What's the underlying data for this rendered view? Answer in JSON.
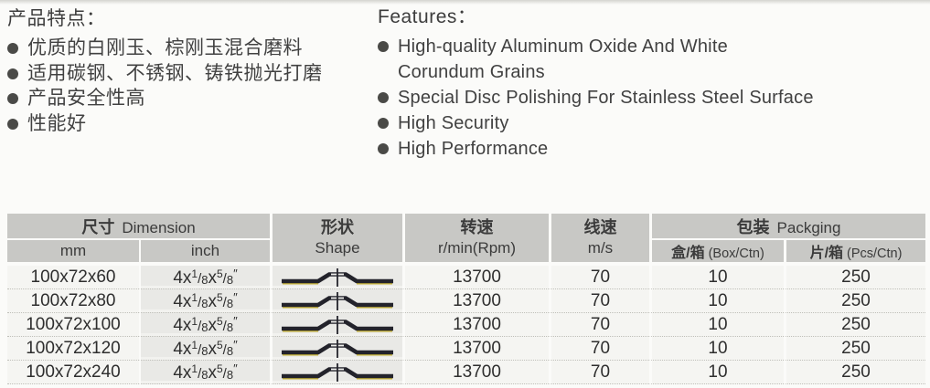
{
  "cn_features": {
    "title": "产品特点：",
    "items": [
      "优质的白刚玉、棕刚玉混合磨料",
      "适用碳钢、不锈钢、铸铁抛光打磨",
      "产品安全性高",
      "性能好"
    ]
  },
  "en_features": {
    "title": "Features：",
    "items": [
      "High-quality Aluminum Oxide And White\nCorundum Grains",
      "Special Disc Polishing For Stainless Steel Surface",
      "High Security",
      "High Performance"
    ]
  },
  "spec_table": {
    "header": {
      "dimension_cn": "尺寸",
      "dimension_en": "Dimension",
      "sub_mm": "mm",
      "sub_inch": "inch",
      "shape_cn": "形状",
      "shape_en": "Shape",
      "rpm_cn": "转速",
      "rpm_en": "r/min(Rpm)",
      "mps_cn": "线速",
      "mps_en": "m/s",
      "packing_cn": "包装",
      "packing_en": "Packging",
      "box_cn": "盒/箱",
      "box_en": "(Box/Ctn)",
      "pcs_cn": "片/箱",
      "pcs_en": "(Pcs/Ctn)"
    },
    "shape_icon": "depressed-center-flap-disc-profile",
    "rows": [
      {
        "mm": "100x72x60",
        "inch": [
          "4x",
          "1/8",
          "x",
          "5/8",
          "″"
        ],
        "rpm": "13700",
        "mps": "70",
        "box": "10",
        "pcs": "250"
      },
      {
        "mm": "100x72x80",
        "inch": [
          "4x",
          "1/8",
          "x",
          "5/8",
          "″"
        ],
        "rpm": "13700",
        "mps": "70",
        "box": "10",
        "pcs": "250"
      },
      {
        "mm": "100x72x100",
        "inch": [
          "4x",
          "1/8",
          "x",
          "5/8",
          "″"
        ],
        "rpm": "13700",
        "mps": "70",
        "box": "10",
        "pcs": "250"
      },
      {
        "mm": "100x72x120",
        "inch": [
          "4x",
          "1/8",
          "x",
          "5/8",
          "″"
        ],
        "rpm": "13700",
        "mps": "70",
        "box": "10",
        "pcs": "250"
      },
      {
        "mm": "100x72x240",
        "inch": [
          "4x",
          "1/8",
          "x",
          "5/8",
          "″"
        ],
        "rpm": "13700",
        "mps": "70",
        "box": "10",
        "pcs": "250"
      }
    ],
    "colors": {
      "header_bg": "#c8c8c5",
      "tint_bg": "#e9e9e6",
      "row_bg": "#f5f5f2",
      "shape_dark": "#23232b",
      "shape_fringe": "#c9b22c"
    }
  }
}
